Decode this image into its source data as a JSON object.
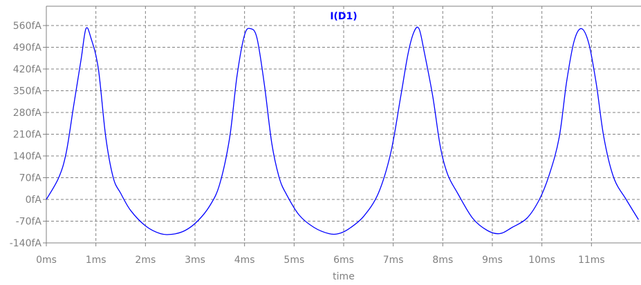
{
  "chart_data": {
    "type": "line",
    "title": "I(D1)",
    "xlabel": "time",
    "ylabel": "",
    "xlim": [
      0,
      12
    ],
    "ylim": [
      -140,
      560
    ],
    "x_ticks": [
      0,
      1,
      2,
      3,
      4,
      5,
      6,
      7,
      8,
      9,
      10,
      11
    ],
    "x_tick_labels": [
      "0ms",
      "1ms",
      "2ms",
      "3ms",
      "4ms",
      "5ms",
      "6ms",
      "7ms",
      "8ms",
      "9ms",
      "10ms",
      "11ms"
    ],
    "y_ticks": [
      560,
      490,
      420,
      350,
      280,
      210,
      140,
      70,
      0,
      -70,
      -140
    ],
    "y_tick_labels": [
      "560fA",
      "490fA",
      "420fA",
      "350fA",
      "280fA",
      "210fA",
      "140fA",
      "70fA",
      "0fA",
      "-70fA",
      "-140fA"
    ],
    "grid": true,
    "series": [
      {
        "name": "I(D1)",
        "x": [
          0,
          0.25,
          0.4,
          0.55,
          0.7,
          0.8,
          0.9,
          1.05,
          1.2,
          1.35,
          1.5,
          1.7,
          2.0,
          2.3,
          2.55,
          2.8,
          3.05,
          3.3,
          3.5,
          3.7,
          3.85,
          4.0,
          4.12,
          4.25,
          4.4,
          4.55,
          4.7,
          4.85,
          5.1,
          5.4,
          5.7,
          5.9,
          6.1,
          6.4,
          6.7,
          6.95,
          7.15,
          7.3,
          7.42,
          7.52,
          7.62,
          7.8,
          7.95,
          8.1,
          8.3,
          8.6,
          8.9,
          9.15,
          9.4,
          9.7,
          9.95,
          10.15,
          10.35,
          10.5,
          10.65,
          10.8,
          10.95,
          11.1,
          11.25,
          11.45,
          11.7,
          11.95
        ],
        "values": [
          0,
          70,
          150,
          300,
          450,
          550,
          520,
          420,
          200,
          70,
          20,
          -35,
          -85,
          -110,
          -112,
          -100,
          -70,
          -20,
          50,
          200,
          400,
          530,
          550,
          520,
          370,
          180,
          70,
          15,
          -50,
          -90,
          -110,
          -110,
          -95,
          -55,
          20,
          150,
          330,
          470,
          540,
          550,
          480,
          330,
          170,
          80,
          20,
          -60,
          -100,
          -110,
          -90,
          -60,
          0,
          80,
          200,
          380,
          510,
          550,
          500,
          370,
          200,
          70,
          0,
          -65
        ],
        "color": "#0000ff"
      }
    ]
  },
  "colors": {
    "line": "#0000ff",
    "grid": "#808080",
    "axis": "#808080",
    "tick_text": "#808080",
    "title": "#0000ff"
  }
}
